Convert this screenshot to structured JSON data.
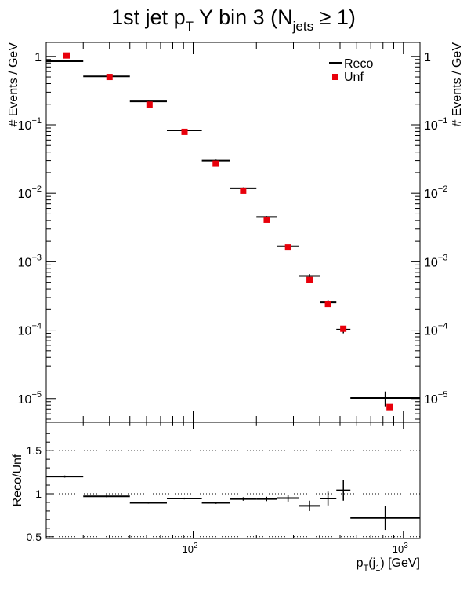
{
  "chart_data": [
    {
      "type": "scatter",
      "title": {
        "main": "1st jet p",
        "sub_T": "T",
        "mid": " Y bin 3 (N",
        "sub_jets": "jets",
        "tail": " ≥ 1)"
      },
      "ylabel": "# Events / GeV",
      "xscale": "log",
      "yscale": "log",
      "xlim": [
        20,
        1200
      ],
      "ylim": [
        4.5e-06,
        1.6
      ],
      "yticks": [
        {
          "value": 1,
          "base": "1",
          "exp": ""
        },
        {
          "value": 0.1,
          "base": "10",
          "exp": "−1"
        },
        {
          "value": 0.01,
          "base": "10",
          "exp": "−2"
        },
        {
          "value": 0.001,
          "base": "10",
          "exp": "−3"
        },
        {
          "value": 0.0001,
          "base": "10",
          "exp": "−4"
        },
        {
          "value": 1e-05,
          "base": "10",
          "exp": "−5"
        }
      ],
      "legend_position": "top-right",
      "series": [
        {
          "name": "Reco",
          "style": "horizontal-bins",
          "color": "#000000",
          "bins": [
            {
              "lo": 20,
              "hi": 30,
              "y": 0.85,
              "err": 0.02
            },
            {
              "lo": 30,
              "hi": 50,
              "y": 0.51,
              "err": 0.01
            },
            {
              "lo": 50,
              "hi": 75,
              "y": 0.22,
              "err": 0.005
            },
            {
              "lo": 75,
              "hi": 110,
              "y": 0.083,
              "err": 0.002
            },
            {
              "lo": 110,
              "hi": 150,
              "y": 0.03,
              "err": 0.001
            },
            {
              "lo": 150,
              "hi": 200,
              "y": 0.0118,
              "err": 0.0004
            },
            {
              "lo": 200,
              "hi": 250,
              "y": 0.0045,
              "err": 0.00015
            },
            {
              "lo": 250,
              "hi": 320,
              "y": 0.00168,
              "err": 8e-05
            },
            {
              "lo": 320,
              "hi": 400,
              "y": 0.00062,
              "err": 4e-05
            },
            {
              "lo": 400,
              "hi": 480,
              "y": 0.000255,
              "err": 2e-05
            },
            {
              "lo": 480,
              "hi": 560,
              "y": 0.000102,
              "err": 1.2e-05
            },
            {
              "lo": 560,
              "hi": 1200,
              "y": 1.02e-05,
              "err": 2.5e-06
            }
          ]
        },
        {
          "name": "Unf",
          "style": "square-markers",
          "color": "#e8000b",
          "points": [
            {
              "x": 25,
              "y": 1.03
            },
            {
              "x": 40,
              "y": 0.5
            },
            {
              "x": 62,
              "y": 0.197
            },
            {
              "x": 91,
              "y": 0.079
            },
            {
              "x": 128,
              "y": 0.027
            },
            {
              "x": 173,
              "y": 0.0109
            },
            {
              "x": 224,
              "y": 0.0041
            },
            {
              "x": 283,
              "y": 0.00162
            },
            {
              "x": 358,
              "y": 0.00054
            },
            {
              "x": 438,
              "y": 0.000242
            },
            {
              "x": 518,
              "y": 0.000105
            },
            {
              "x": 860,
              "y": 7.5e-06
            }
          ]
        }
      ]
    },
    {
      "type": "scatter",
      "ylabel": "Reco/Unf",
      "xlabel": {
        "main": "p",
        "sub_T": "T",
        "paren_open": "(j",
        "sub_1": "1",
        "tail": ") [GeV]"
      },
      "xscale": "log",
      "xlim": [
        20,
        1200
      ],
      "ylim": [
        0.48,
        1.83
      ],
      "yticks": [
        {
          "value": 0.5,
          "label": "0.5"
        },
        {
          "value": 1,
          "label": "1"
        },
        {
          "value": 1.5,
          "label": "1.5"
        }
      ],
      "xtick_labels": [
        {
          "value": 100,
          "base": "10",
          "exp": "2"
        },
        {
          "value": 1000,
          "base": "10",
          "exp": "3"
        }
      ],
      "gridlines_y": [
        1.5,
        1,
        0.5
      ],
      "series": [
        {
          "name": "",
          "style": "horizontal-bins",
          "color": "#000000",
          "bins": [
            {
              "lo": 20,
              "hi": 30,
              "y": 1.2,
              "err": 0.012
            },
            {
              "lo": 30,
              "hi": 50,
              "y": 0.97,
              "err": 0.01
            },
            {
              "lo": 50,
              "hi": 75,
              "y": 0.895,
              "err": 0.01
            },
            {
              "lo": 75,
              "hi": 110,
              "y": 0.945,
              "err": 0.01
            },
            {
              "lo": 110,
              "hi": 150,
              "y": 0.895,
              "err": 0.012
            },
            {
              "lo": 150,
              "hi": 200,
              "y": 0.94,
              "err": 0.02
            },
            {
              "lo": 200,
              "hi": 250,
              "y": 0.94,
              "err": 0.025
            },
            {
              "lo": 250,
              "hi": 320,
              "y": 0.95,
              "err": 0.04
            },
            {
              "lo": 320,
              "hi": 400,
              "y": 0.86,
              "err": 0.06
            },
            {
              "lo": 400,
              "hi": 480,
              "y": 0.945,
              "err": 0.08
            },
            {
              "lo": 480,
              "hi": 560,
              "y": 1.04,
              "err": 0.12
            },
            {
              "lo": 560,
              "hi": 1200,
              "y": 0.72,
              "err": 0.14
            }
          ]
        }
      ]
    }
  ]
}
